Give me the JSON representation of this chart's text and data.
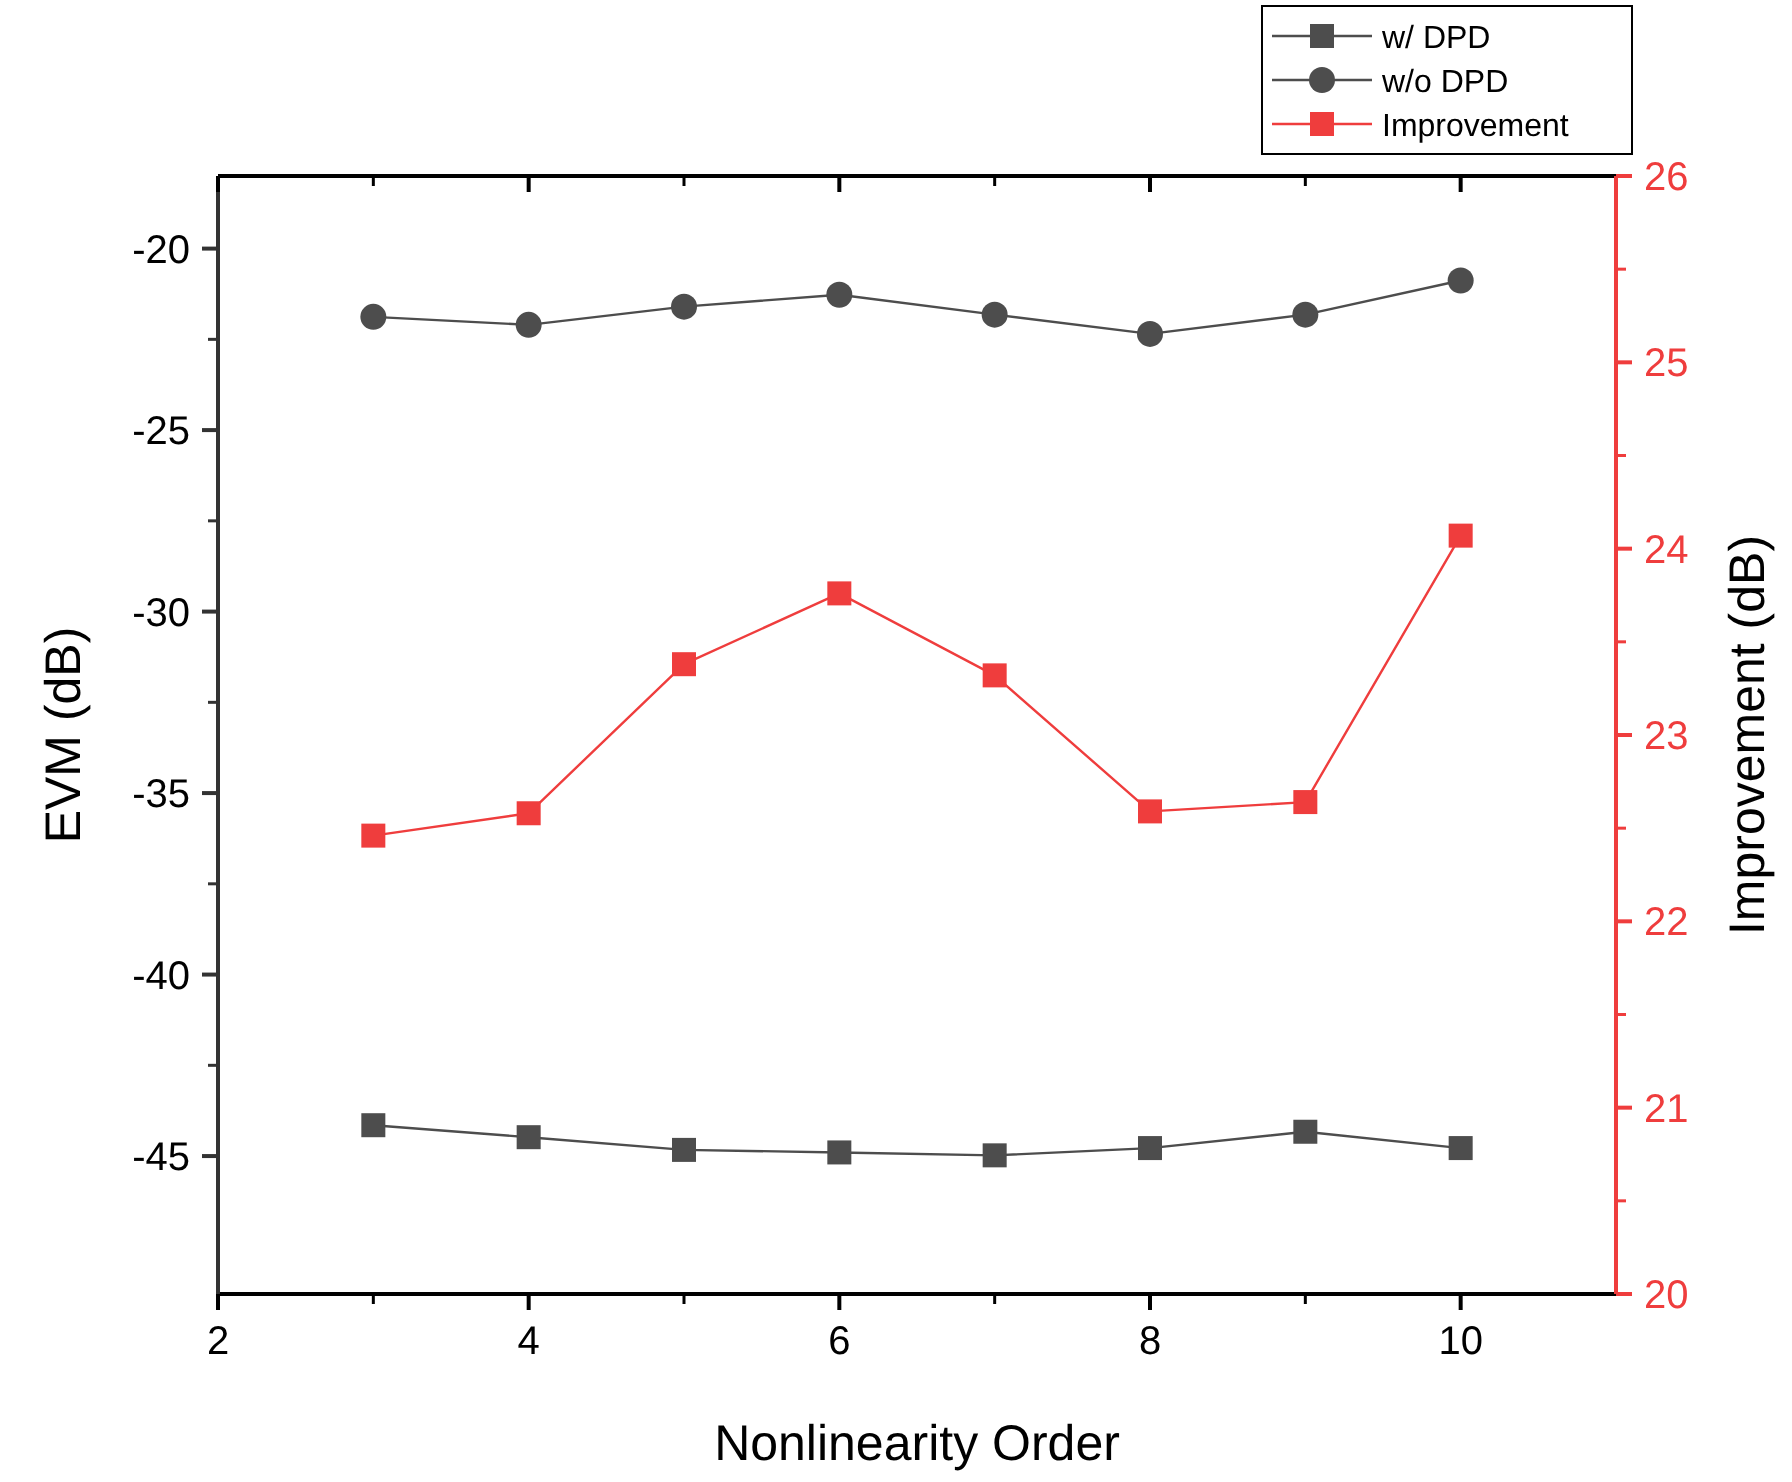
{
  "chart_data": {
    "type": "line",
    "xlabel": "Nonlinearity Order",
    "ylabel": "EVM (dB)",
    "y2label": "Improvement (dB)",
    "x": [
      3,
      4,
      5,
      6,
      7,
      8,
      9,
      10
    ],
    "xlim": [
      2,
      11
    ],
    "xticks": [
      2,
      4,
      6,
      8,
      10
    ],
    "ylim": [
      -48.8,
      -18
    ],
    "yticks": [
      -45,
      -40,
      -35,
      -30,
      -25,
      -20
    ],
    "y2lim": [
      20,
      26
    ],
    "y2ticks": [
      20,
      21,
      22,
      23,
      24,
      25,
      26
    ],
    "legend": "top right",
    "grid": false,
    "series": [
      {
        "name": "w/ DPD",
        "color": "#4d4d4d",
        "marker": "square",
        "values": [
          -44.15,
          -44.48,
          -44.83,
          -44.9,
          -44.98,
          -44.78,
          -44.33,
          -44.78
        ]
      },
      {
        "name": "w/o DPD",
        "color": "#4d4d4d",
        "marker": "circle",
        "values": [
          -21.88,
          -22.1,
          -21.6,
          -21.27,
          -21.82,
          -22.35,
          -21.82,
          -20.88
        ]
      },
      {
        "name": "Improvement",
        "color": "#ef3d3d",
        "marker": "square",
        "axis": "y2",
        "values": [
          22.46,
          22.58,
          23.38,
          23.76,
          23.32,
          22.59,
          22.64,
          24.07
        ]
      }
    ]
  }
}
